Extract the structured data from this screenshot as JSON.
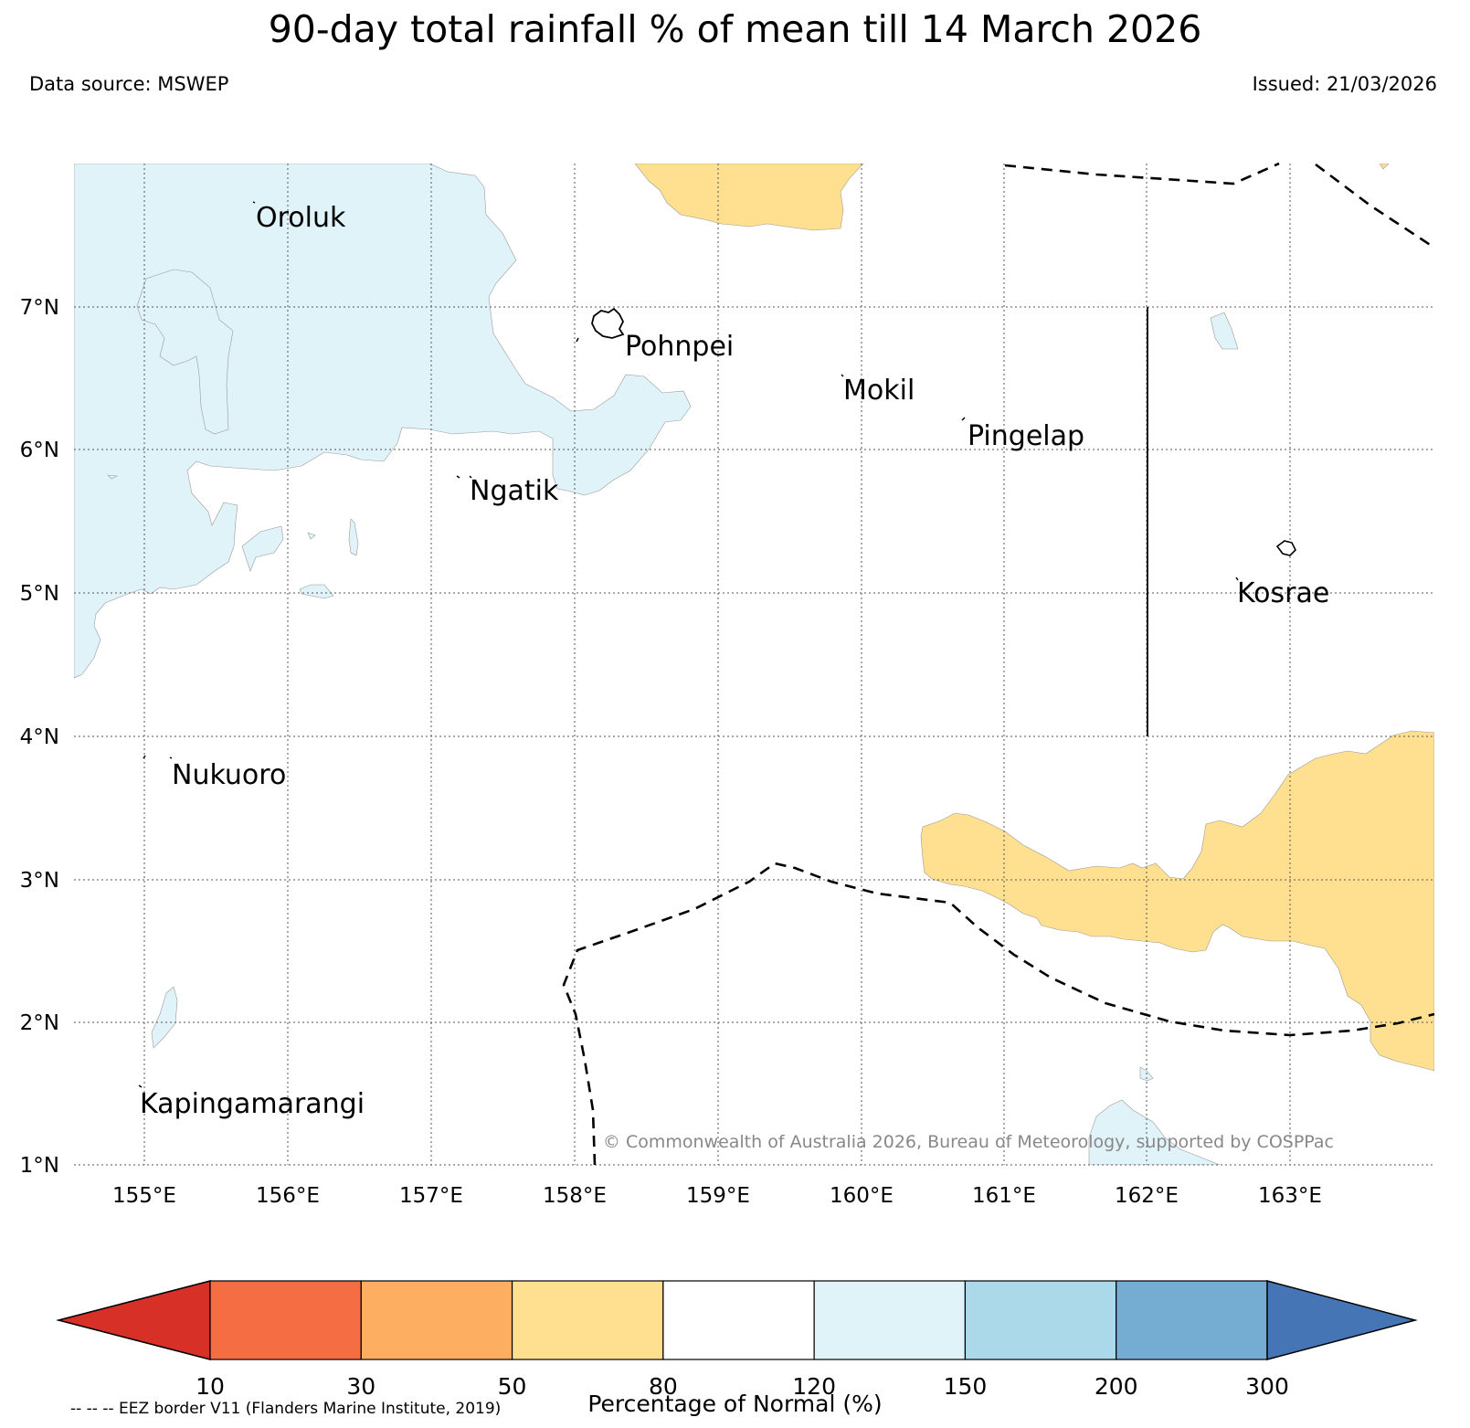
{
  "title": "90-day total rainfall % of mean till 14 March 2026",
  "source": "Data source: MSWEP",
  "issued": "Issued: 21/03/2026",
  "map": {
    "lon_range": [
      154.5,
      164.0
    ],
    "lat_range": [
      1.0,
      8.0
    ],
    "lat_labels": [
      "7°N",
      "6°N",
      "5°N",
      "4°N",
      "3°N",
      "2°N",
      "1°N"
    ],
    "lon_labels": [
      "155°E",
      "156°E",
      "157°E",
      "158°E",
      "159°E",
      "160°E",
      "161°E",
      "162°E",
      "163°E"
    ],
    "places": [
      {
        "name": "Oroluk"
      },
      {
        "name": "Pohnpei"
      },
      {
        "name": "Mokil"
      },
      {
        "name": "Pingelap"
      },
      {
        "name": "Ngatik"
      },
      {
        "name": "Kosrae"
      },
      {
        "name": "Nukuoro"
      },
      {
        "name": "Kapingamarangi"
      }
    ],
    "credit": "© Commonwealth of Australia 2026, Bureau of Meteorology, supported by COSPPac"
  },
  "colorbar": {
    "title": "Percentage of Normal (%)",
    "ticks": [
      "10",
      "30",
      "50",
      "80",
      "120",
      "150",
      "200",
      "300"
    ],
    "colors": [
      "#d73027",
      "#f46d43",
      "#fdae61",
      "#fee090",
      "#ffffff",
      "#e0f3f8",
      "#abd9e9",
      "#74add1",
      "#4575b4"
    ],
    "extend": "both"
  },
  "eez_note": "-- -- -- EEZ border V11 (Flanders Marine Institute, 2019)"
}
